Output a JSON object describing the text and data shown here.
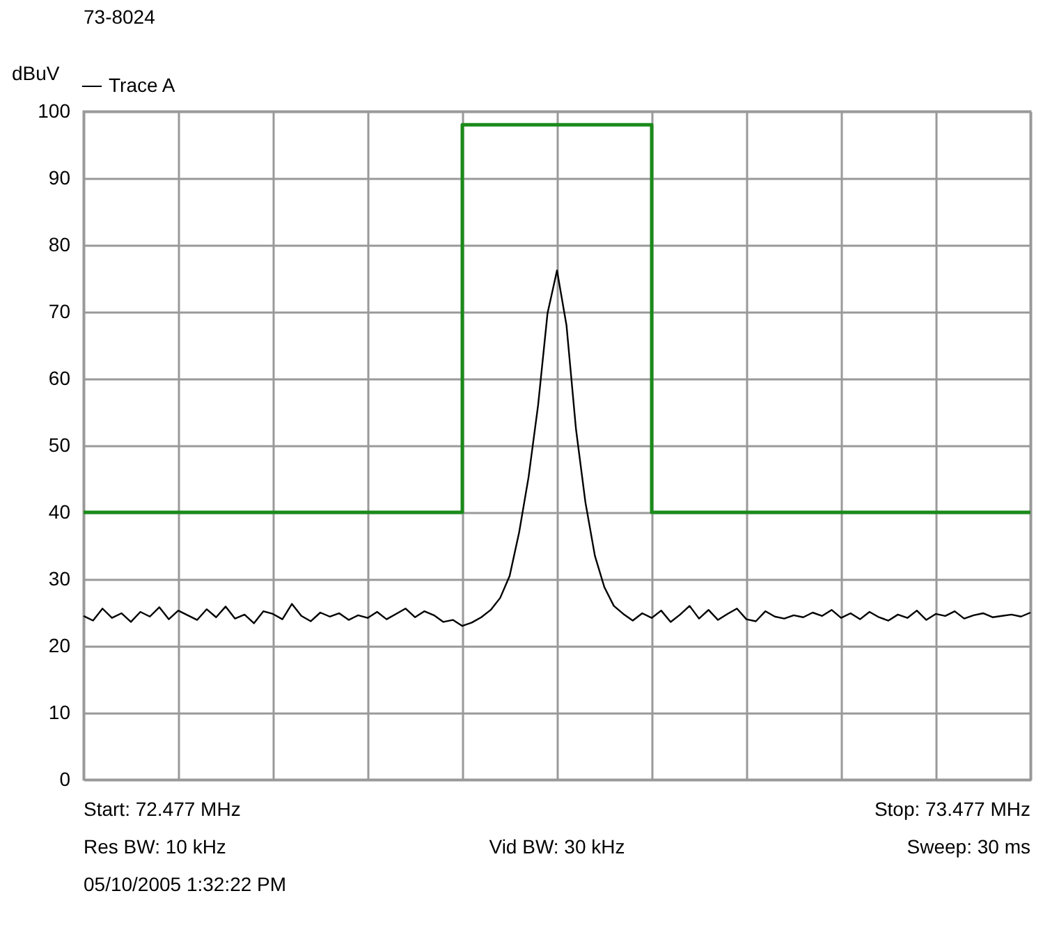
{
  "chart_data": {
    "type": "line",
    "title": "73-8024",
    "ylabel": "dBuV",
    "categories": [
      null,
      null,
      null,
      null,
      null,
      null,
      null,
      null,
      null,
      null,
      null,
      null,
      null,
      null,
      null,
      null,
      null,
      null,
      null,
      null,
      null,
      null,
      null,
      null,
      null,
      null,
      null,
      null,
      null,
      null,
      null,
      null,
      null,
      null,
      null,
      null,
      null,
      null,
      null,
      null,
      null,
      null,
      null,
      null,
      null,
      null,
      null,
      null,
      null,
      null,
      null,
      null,
      null,
      null,
      null,
      null,
      null,
      null,
      null,
      null,
      null,
      null,
      null,
      null,
      null,
      null,
      null,
      null,
      null,
      null,
      null,
      null,
      null,
      null,
      null,
      null,
      null,
      null,
      null,
      null,
      null,
      null,
      null,
      null,
      null,
      null,
      null,
      null,
      null,
      null,
      null,
      null,
      null,
      null,
      null,
      null,
      null,
      null,
      null,
      null,
      null
    ],
    "ylim": [
      0,
      100
    ],
    "yticks": [
      0,
      10,
      20,
      30,
      40,
      50,
      60,
      70,
      80,
      90,
      100
    ],
    "grid": true,
    "tick_labels": "y",
    "legend": "top left",
    "marker": "none",
    "line_style": "solid",
    "series": [
      {
        "name": "Trace A",
        "color": "#000000",
        "values": [
          24.5,
          23.8,
          25.6,
          24.2,
          24.9,
          23.6,
          25.1,
          24.4,
          25.8,
          24.0,
          25.3,
          24.6,
          23.9,
          25.5,
          24.3,
          25.9,
          24.1,
          24.7,
          23.4,
          25.2,
          24.8,
          24.0,
          26.3,
          24.5,
          23.7,
          25.0,
          24.4,
          24.9,
          23.9,
          24.6,
          24.2,
          25.1,
          24.0,
          24.8,
          25.6,
          24.3,
          25.2,
          24.6,
          23.6,
          23.9,
          23.0,
          23.5,
          24.3,
          25.4,
          27.2,
          30.5,
          37.0,
          45.3,
          56.0,
          69.8,
          76.2,
          68.0,
          52.5,
          41.5,
          33.5,
          28.8,
          26.0,
          24.8,
          23.8,
          24.9,
          24.2,
          25.3,
          23.6,
          24.7,
          26.0,
          24.1,
          25.4,
          23.9,
          24.8,
          25.6,
          24.0,
          23.7,
          25.2,
          24.4,
          24.1,
          24.6,
          24.3,
          25.0,
          24.5,
          25.4,
          24.2,
          24.9,
          24.0,
          25.1,
          24.3,
          23.8,
          24.7,
          24.2,
          25.3,
          23.9,
          24.8,
          24.5,
          25.2,
          24.1,
          24.6,
          24.9,
          24.3,
          24.5,
          24.7,
          24.4,
          25.0
        ]
      },
      {
        "type": "step",
        "color": "#1a8a1a",
        "values": [
          40,
          40,
          40,
          40,
          40,
          40,
          40,
          40,
          40,
          40,
          40,
          40,
          40,
          40,
          40,
          40,
          40,
          40,
          40,
          40,
          40,
          40,
          40,
          40,
          40,
          40,
          40,
          40,
          40,
          40,
          40,
          40,
          40,
          40,
          40,
          40,
          40,
          40,
          40,
          40,
          98,
          98,
          98,
          98,
          98,
          98,
          98,
          98,
          98,
          98,
          98,
          98,
          98,
          98,
          98,
          98,
          98,
          98,
          98,
          98,
          40,
          40,
          40,
          40,
          40,
          40,
          40,
          40,
          40,
          40,
          40,
          40,
          40,
          40,
          40,
          40,
          40,
          40,
          40,
          40,
          40,
          40,
          40,
          40,
          40,
          40,
          40,
          40,
          40,
          40,
          40,
          40,
          40,
          40,
          40,
          40,
          40,
          40,
          40,
          40,
          40
        ]
      }
    ],
    "annotations": [
      "Start: 72.477 MHz",
      "Stop: 73.477 MHz",
      "Res BW: 10 kHz",
      "Vid BW: 30 kHz",
      "Sweep: 30 ms",
      "05/10/2005 1:32:22 PM"
    ]
  }
}
